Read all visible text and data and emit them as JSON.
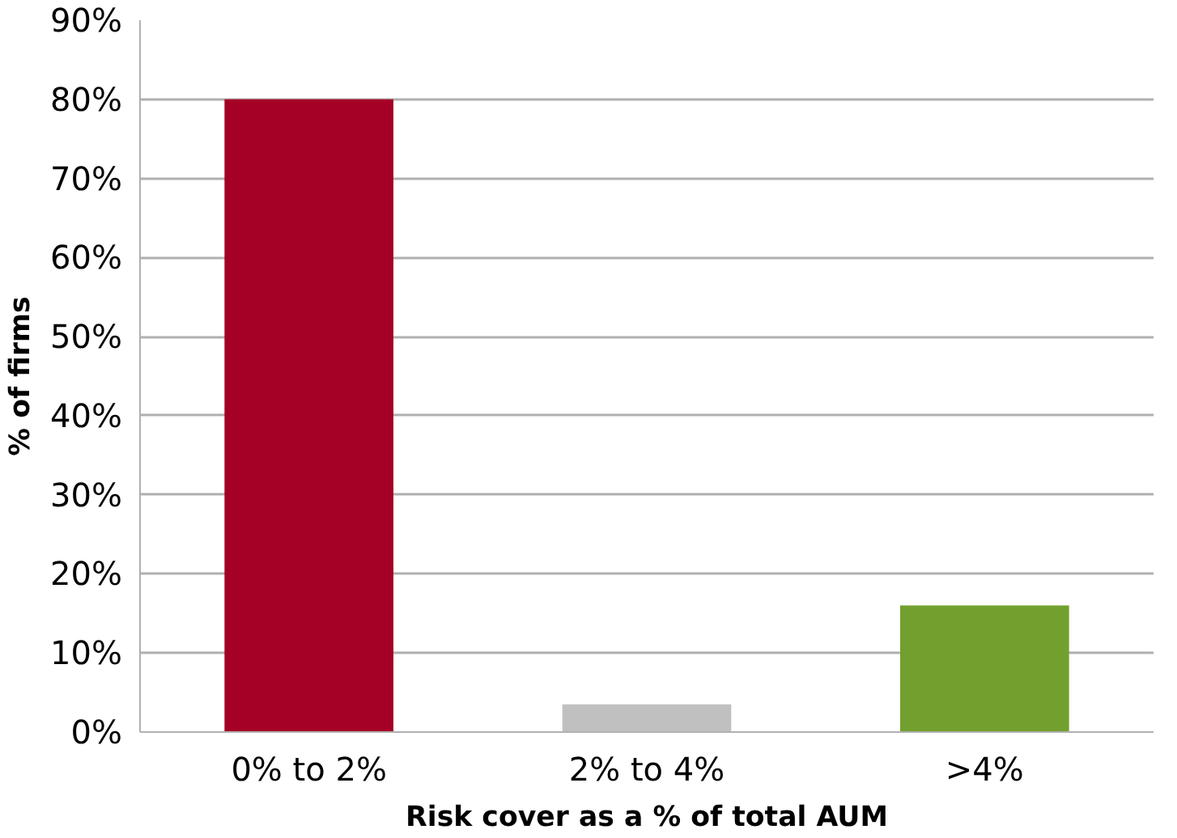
{
  "chart_data": {
    "type": "bar",
    "xlabel": "Risk cover as a % of total AUM",
    "ylabel": "% of firms",
    "categories": [
      "0% to 2%",
      "2% to 4%",
      ">4%"
    ],
    "values": [
      80,
      3.5,
      16
    ],
    "colors": [
      "#a50026",
      "#c0c0c0",
      "#72a02e"
    ],
    "ylim": [
      0,
      90
    ],
    "yticks": [
      {
        "value": 0,
        "label": "0%"
      },
      {
        "value": 10,
        "label": "10%"
      },
      {
        "value": 20,
        "label": "20%"
      },
      {
        "value": 30,
        "label": "30%"
      },
      {
        "value": 40,
        "label": "40%"
      },
      {
        "value": 50,
        "label": "50%"
      },
      {
        "value": 60,
        "label": "60%"
      },
      {
        "value": 70,
        "label": "70%"
      },
      {
        "value": 80,
        "label": "80%"
      },
      {
        "value": 90,
        "label": "90%"
      }
    ],
    "grid": "y"
  }
}
